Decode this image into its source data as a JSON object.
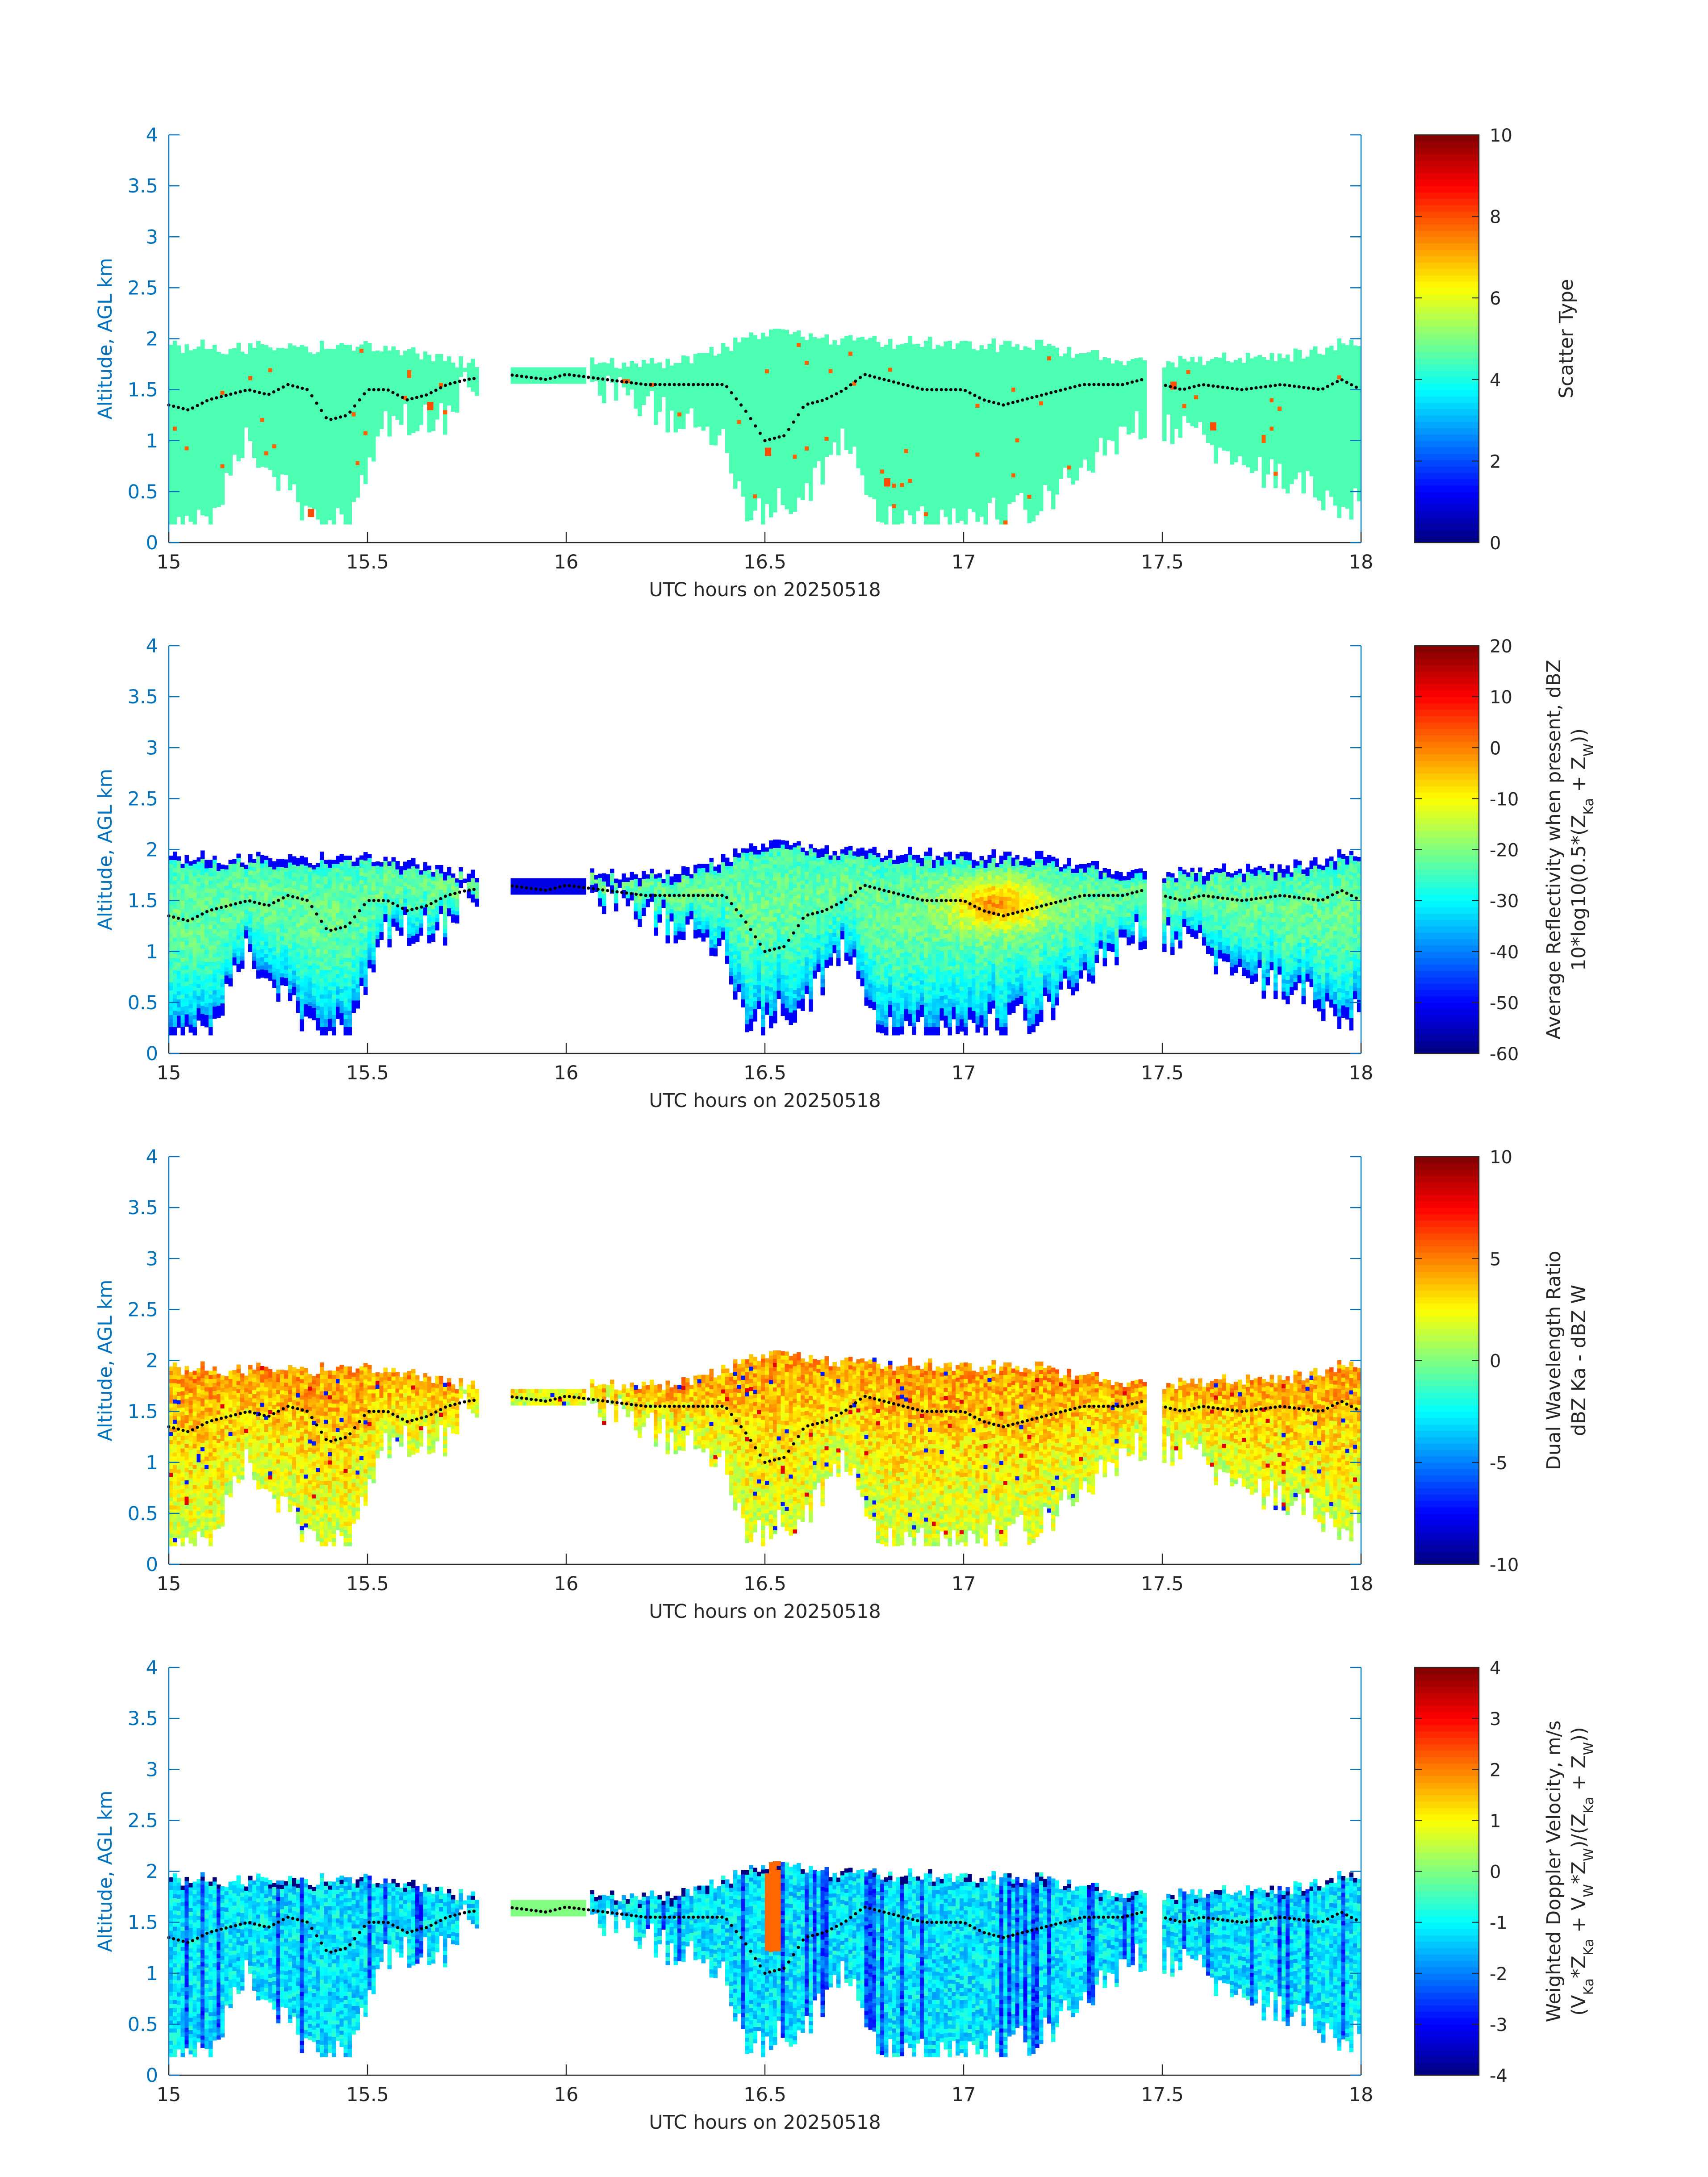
{
  "figure": {
    "panels": [
      {
        "id": "scatter-type",
        "ylabel": "Altitude, AGL km",
        "xlabel": "UTC hours on 20250518",
        "xticks": [
          "15",
          "15.5",
          "16",
          "16.5",
          "17",
          "17.5",
          "18"
        ],
        "yticks": [
          "0",
          "0.5",
          "1",
          "1.5",
          "2",
          "2.5",
          "3",
          "3.5",
          "4"
        ],
        "colorbar_label": [
          "Scatter Type"
        ],
        "colorbar_ticks": [
          "0",
          "2",
          "4",
          "6",
          "8",
          "10"
        ]
      },
      {
        "id": "reflectivity",
        "ylabel": "Altitude, AGL km",
        "xlabel": "UTC hours on 20250518",
        "xticks": [
          "15",
          "15.5",
          "16",
          "16.5",
          "17",
          "17.5",
          "18"
        ],
        "yticks": [
          "0",
          "0.5",
          "1",
          "1.5",
          "2",
          "2.5",
          "3",
          "3.5",
          "4"
        ],
        "colorbar_label": [
          "Average Reflectivity when present, dBZ",
          "10*log10(0.5*(Z_Ka + Z_W))"
        ],
        "colorbar_ticks": [
          "-60",
          "-50",
          "-40",
          "-30",
          "-20",
          "-10",
          "0",
          "10",
          "20"
        ]
      },
      {
        "id": "dwr",
        "ylabel": "Altitude, AGL km",
        "xlabel": "UTC hours on 20250518",
        "xticks": [
          "15",
          "15.5",
          "16",
          "16.5",
          "17",
          "17.5",
          "18"
        ],
        "yticks": [
          "0",
          "0.5",
          "1",
          "1.5",
          "2",
          "2.5",
          "3",
          "3.5",
          "4"
        ],
        "colorbar_label": [
          "Dual Wavelength Ratio",
          "dBZ Ka - dBZ W"
        ],
        "colorbar_ticks": [
          "-10",
          "-5",
          "0",
          "5",
          "10"
        ]
      },
      {
        "id": "doppler",
        "ylabel": "Altitude, AGL km",
        "xlabel": "UTC hours on 20250518",
        "xticks": [
          "15",
          "15.5",
          "16",
          "16.5",
          "17",
          "17.5",
          "18"
        ],
        "yticks": [
          "0",
          "0.5",
          "1",
          "1.5",
          "2",
          "2.5",
          "3",
          "3.5",
          "4"
        ],
        "colorbar_label": [
          "Weighted Doppler Velocity, m/s",
          "(V_Ka*Z_Ka + V_W*Z_W)/(Z_Ka + Z_W))"
        ],
        "colorbar_ticks": [
          "-4",
          "-3",
          "-2",
          "-1",
          "0",
          "1",
          "2",
          "3",
          "4"
        ]
      }
    ]
  },
  "chart_data": [
    {
      "type": "heatmap",
      "title": "",
      "xlabel": "UTC hours on 20250518",
      "ylabel": "Altitude, AGL km",
      "xlim": [
        15,
        18
      ],
      "ylim": [
        0,
        4
      ],
      "colorbar": {
        "label": "Scatter Type",
        "range": [
          0,
          10
        ],
        "colormap": "jet"
      },
      "cloud_base_km": [
        [
          15.0,
          0.2
        ],
        [
          15.1,
          0.2
        ],
        [
          15.2,
          1.0
        ],
        [
          15.35,
          0.25
        ],
        [
          15.45,
          0.2
        ],
        [
          15.55,
          1.2
        ],
        [
          15.7,
          1.2
        ],
        [
          15.75,
          1.6
        ],
        [
          16.05,
          1.6
        ],
        [
          16.4,
          1.0
        ],
        [
          16.45,
          0.2
        ],
        [
          16.6,
          0.5
        ],
        [
          16.7,
          1.0
        ],
        [
          16.8,
          0.2
        ],
        [
          17.0,
          0.2
        ],
        [
          17.2,
          0.4
        ],
        [
          17.45,
          1.2
        ],
        [
          17.55,
          1.1
        ],
        [
          17.7,
          0.8
        ],
        [
          17.95,
          0.4
        ]
      ],
      "cloud_top_km": [
        [
          15.0,
          1.9
        ],
        [
          15.5,
          1.9
        ],
        [
          15.75,
          1.75
        ],
        [
          15.85,
          1.75
        ],
        [
          16.05,
          1.75
        ],
        [
          16.3,
          1.75
        ],
        [
          16.5,
          2.05
        ],
        [
          16.75,
          1.95
        ],
        [
          17.2,
          1.9
        ],
        [
          17.45,
          1.75
        ],
        [
          17.5,
          1.75
        ],
        [
          17.8,
          1.8
        ],
        [
          18.0,
          1.95
        ]
      ],
      "dominant_value": 4.5,
      "notes_points": [
        [
          15.35,
          0.25,
          8
        ],
        [
          15.65,
          1.3,
          8
        ],
        [
          16.5,
          0.85,
          8
        ],
        [
          16.8,
          0.55,
          8
        ],
        [
          17.52,
          1.5,
          8
        ],
        [
          17.62,
          1.1,
          8
        ]
      ],
      "overlay": {
        "type": "line",
        "style": "dotted",
        "color": "#000000",
        "x": [
          15.0,
          15.05,
          15.1,
          15.15,
          15.2,
          15.25,
          15.3,
          15.35,
          15.4,
          15.45,
          15.5,
          15.55,
          15.6,
          15.65,
          15.7,
          15.75,
          15.85,
          15.95,
          16.0,
          16.1,
          16.2,
          16.3,
          16.4,
          16.45,
          16.5,
          16.55,
          16.6,
          16.65,
          16.7,
          16.75,
          16.8,
          16.9,
          17.0,
          17.05,
          17.1,
          17.2,
          17.3,
          17.4,
          17.45,
          17.55,
          17.6,
          17.7,
          17.8,
          17.9,
          17.95,
          18.0
        ],
        "y": [
          1.35,
          1.3,
          1.4,
          1.45,
          1.5,
          1.45,
          1.55,
          1.5,
          1.2,
          1.25,
          1.5,
          1.5,
          1.4,
          1.45,
          1.55,
          1.6,
          1.65,
          1.6,
          1.65,
          1.6,
          1.55,
          1.55,
          1.55,
          1.3,
          1.0,
          1.05,
          1.35,
          1.4,
          1.5,
          1.65,
          1.6,
          1.5,
          1.5,
          1.4,
          1.35,
          1.45,
          1.55,
          1.55,
          1.6,
          1.5,
          1.55,
          1.5,
          1.55,
          1.5,
          1.6,
          1.5
        ]
      }
    },
    {
      "type": "heatmap",
      "title": "",
      "xlabel": "UTC hours on 20250518",
      "ylabel": "Altitude, AGL km",
      "xlim": [
        15,
        18
      ],
      "ylim": [
        0,
        4
      ],
      "colorbar": {
        "label": "Average Reflectivity when present, dBZ 10*log10(0.5*(Z_Ka + Z_W))",
        "range": [
          -60,
          20
        ],
        "colormap": "jet"
      },
      "typical_values_dbz": {
        "cloud_core": -20,
        "cloud_edges": -45,
        "strongest_near_17_1": -2
      },
      "overlay": {
        "type": "line",
        "style": "dotted",
        "color": "#000000",
        "same_as_panel": 1
      }
    },
    {
      "type": "heatmap",
      "title": "",
      "xlabel": "UTC hours on 20250518",
      "ylabel": "Altitude, AGL km",
      "xlim": [
        15,
        18
      ],
      "ylim": [
        0,
        4
      ],
      "colorbar": {
        "label": "Dual Wavelength Ratio dBZ Ka - dBZ W",
        "range": [
          -10,
          10
        ],
        "colormap": "jet"
      },
      "typical_values_db": {
        "upper_cloud": 4,
        "lower_cloud": 1.5,
        "sporadic_min": -6
      },
      "overlay": {
        "type": "line",
        "style": "dotted",
        "color": "#000000",
        "same_as_panel": 1
      }
    },
    {
      "type": "heatmap",
      "title": "",
      "xlabel": "UTC hours on 20250518",
      "ylabel": "Altitude, AGL km",
      "xlim": [
        15,
        18
      ],
      "ylim": [
        0,
        4
      ],
      "colorbar": {
        "label": "Weighted Doppler Velocity, m/s (V_Ka*Z_Ka + V_W*Z_W)/(Z_Ka + Z_W))",
        "range": [
          -4,
          4
        ],
        "colormap": "jet"
      },
      "typical_values_ms": {
        "background": -1.2,
        "downdraft_cores": -2.5,
        "updraft_near_16_5": 2.5
      },
      "overlay": {
        "type": "line",
        "style": "dotted",
        "color": "#000000",
        "same_as_panel": 1
      }
    }
  ]
}
